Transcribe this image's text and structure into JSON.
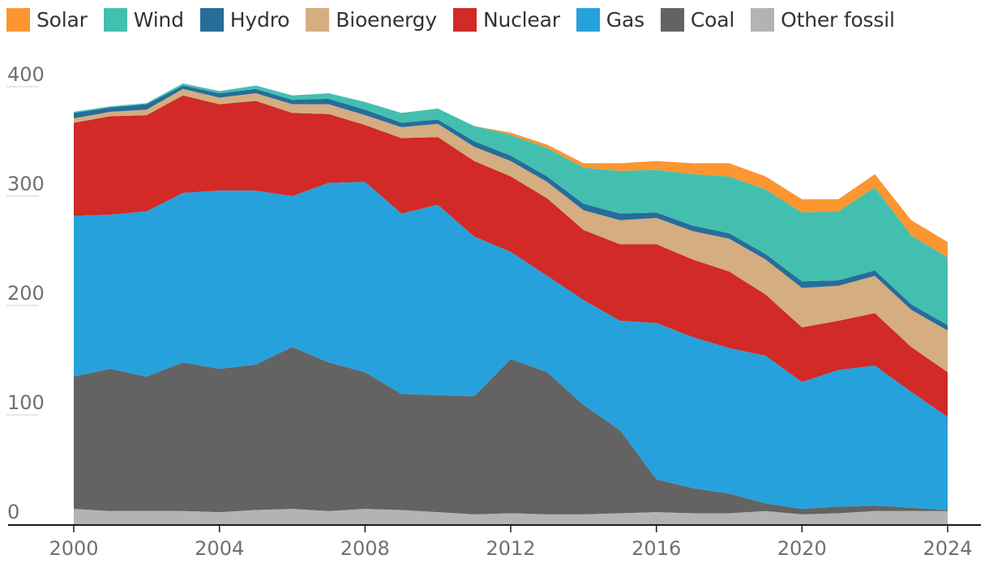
{
  "chart_data": {
    "type": "area",
    "stacked": true,
    "title": "",
    "xlabel": "",
    "ylabel": "",
    "ylim": [
      0,
      400
    ],
    "xlim": [
      2000,
      2024
    ],
    "x_ticks": [
      "2000",
      "2004",
      "2008",
      "2012",
      "2016",
      "2020",
      "2024"
    ],
    "y_ticks": [
      "0",
      "100",
      "200",
      "300",
      "400"
    ],
    "grid": "horizontal-partial",
    "legend_position": "top",
    "x": [
      2000,
      2001,
      2002,
      2003,
      2004,
      2005,
      2006,
      2007,
      2008,
      2009,
      2010,
      2011,
      2012,
      2013,
      2014,
      2015,
      2016,
      2017,
      2018,
      2019,
      2020,
      2021,
      2022,
      2023,
      2024
    ],
    "series": [
      {
        "name": "Other fossil",
        "color": "#b3b3b3",
        "values": [
          14,
          12,
          12,
          12,
          11,
          13,
          14,
          12,
          14,
          13,
          11,
          9,
          10,
          9,
          9,
          10,
          11,
          10,
          10,
          12,
          9,
          10,
          12,
          12,
          12
        ]
      },
      {
        "name": "Coal",
        "color": "#636363",
        "values": [
          121,
          130,
          123,
          136,
          131,
          133,
          148,
          136,
          125,
          106,
          107,
          108,
          141,
          130,
          100,
          76,
          30,
          23,
          18,
          7,
          5,
          6,
          5,
          3,
          1
        ]
      },
      {
        "name": "Gas",
        "color": "#27a1dc",
        "values": [
          147,
          141,
          151,
          155,
          163,
          159,
          138,
          164,
          174,
          165,
          174,
          146,
          98,
          88,
          96,
          100,
          143,
          138,
          133,
          135,
          116,
          125,
          128,
          106,
          85
        ]
      },
      {
        "name": "Nuclear",
        "color": "#d12a27",
        "values": [
          85,
          90,
          88,
          89,
          79,
          82,
          76,
          63,
          52,
          69,
          62,
          69,
          69,
          71,
          64,
          70,
          72,
          71,
          70,
          56,
          50,
          45,
          48,
          41,
          41
        ]
      },
      {
        "name": "Bioenergy",
        "color": "#d4ad80",
        "values": [
          4,
          4,
          5,
          6,
          6,
          7,
          8,
          9,
          9,
          10,
          12,
          13,
          14,
          15,
          18,
          22,
          24,
          26,
          30,
          32,
          36,
          32,
          34,
          34,
          38
        ]
      },
      {
        "name": "Hydro",
        "color": "#266d9a",
        "values": [
          5,
          4,
          5,
          3,
          4,
          4,
          4,
          5,
          5,
          4,
          4,
          5,
          5,
          5,
          6,
          6,
          5,
          5,
          5,
          5,
          6,
          5,
          5,
          5,
          5
        ]
      },
      {
        "name": "Wind",
        "color": "#43bfb0",
        "values": [
          1,
          1,
          1,
          2,
          2,
          3,
          4,
          5,
          7,
          9,
          10,
          14,
          19,
          26,
          33,
          39,
          39,
          47,
          52,
          59,
          63,
          63,
          76,
          63,
          62
        ]
      },
      {
        "name": "Solar",
        "color": "#fb9631",
        "values": [
          0,
          0,
          0,
          0,
          0,
          0,
          0,
          0,
          0,
          0,
          0,
          0,
          2,
          3,
          4,
          7,
          8,
          10,
          12,
          12,
          12,
          11,
          12,
          14,
          14
        ]
      }
    ]
  }
}
